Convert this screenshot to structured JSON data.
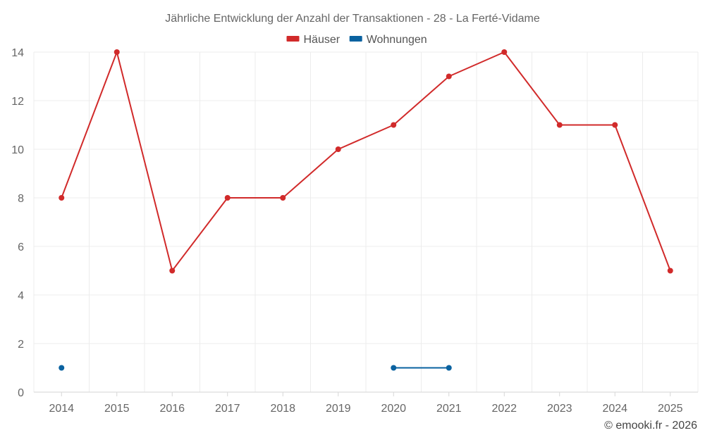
{
  "chart_data": {
    "type": "line",
    "title": "Jährliche Entwicklung der Anzahl der Transaktionen - 28 - La Ferté-Vidame",
    "categories": [
      "2014",
      "2015",
      "2016",
      "2017",
      "2018",
      "2019",
      "2020",
      "2021",
      "2022",
      "2023",
      "2024",
      "2025"
    ],
    "ylim": [
      0,
      14
    ],
    "yticks": [
      0,
      2,
      4,
      6,
      8,
      10,
      12,
      14
    ],
    "grid": true,
    "legend_position": "top-center",
    "series": [
      {
        "name": "Häuser",
        "color": "#d12a2a",
        "values": [
          8,
          14,
          5,
          8,
          8,
          10,
          11,
          13,
          14,
          11,
          11,
          5
        ]
      },
      {
        "name": "Wohnungen",
        "color": "#0a62a0",
        "values": [
          1,
          null,
          null,
          null,
          null,
          null,
          1,
          1,
          null,
          null,
          null,
          null
        ]
      }
    ],
    "credit": "© emooki.fr - 2026"
  }
}
